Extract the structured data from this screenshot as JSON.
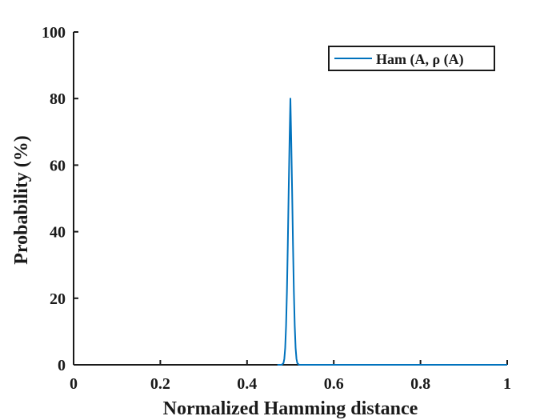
{
  "chart_data": {
    "type": "line",
    "title": "",
    "xlabel": "Normalized Hamming distance",
    "ylabel": "Probability (%)",
    "xlim": [
      0,
      1
    ],
    "ylim": [
      0,
      100
    ],
    "xticks": [
      "0",
      "0.2",
      "0.4",
      "0.6",
      "0.8",
      "1"
    ],
    "yticks": [
      "0",
      "20",
      "40",
      "60",
      "80",
      "100"
    ],
    "grid": false,
    "legend_position": "top-right",
    "series": [
      {
        "name": "Ham (A, ρ (A)",
        "color": "#0072bd",
        "x": [
          0.47,
          0.48,
          0.484,
          0.486,
          0.488,
          0.49,
          0.492,
          0.494,
          0.496,
          0.498,
          0.5,
          0.502,
          0.504,
          0.506,
          0.508,
          0.51,
          0.512,
          0.514,
          0.516,
          0.52,
          1.0
        ],
        "y": [
          0,
          0,
          0.5,
          1.8,
          5.1,
          11.7,
          22.0,
          36.0,
          52.0,
          67.0,
          80.0,
          67.0,
          52.0,
          36.0,
          22.0,
          11.7,
          5.1,
          1.8,
          0.5,
          0,
          0
        ]
      }
    ]
  }
}
